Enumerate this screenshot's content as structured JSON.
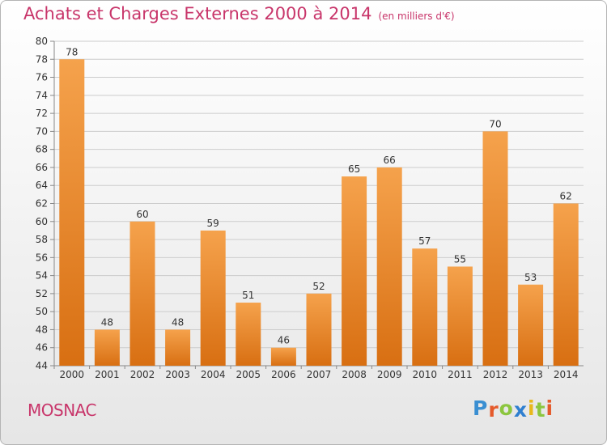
{
  "title": "Achats et Charges Externes 2000 à 2014",
  "subtitle": "(en milliers d'€)",
  "commune": "MOSNAC",
  "logo": {
    "text": "Proxiti",
    "letter_colors": [
      "#3a8fd2",
      "#e55a2b",
      "#8cc63f",
      "#2f7fd0",
      "#e8b81c",
      "#8cc63f",
      "#e55a2b"
    ]
  },
  "colors": {
    "bar_top": "#f5a24c",
    "bar_bottom": "#d86f12",
    "title": "#c8356a",
    "grid": "#cccccc"
  },
  "chart_data": {
    "type": "bar",
    "title": "Achats et Charges Externes 2000 à 2014",
    "subtitle": "(en milliers d'€)",
    "categories": [
      "2000",
      "2001",
      "2002",
      "2003",
      "2004",
      "2005",
      "2006",
      "2007",
      "2008",
      "2009",
      "2010",
      "2011",
      "2012",
      "2013",
      "2014"
    ],
    "values": [
      78,
      48,
      60,
      48,
      59,
      51,
      46,
      52,
      65,
      66,
      57,
      55,
      70,
      53,
      62
    ],
    "ylim": [
      44,
      80
    ],
    "ytick_step": 2,
    "grid": true
  }
}
